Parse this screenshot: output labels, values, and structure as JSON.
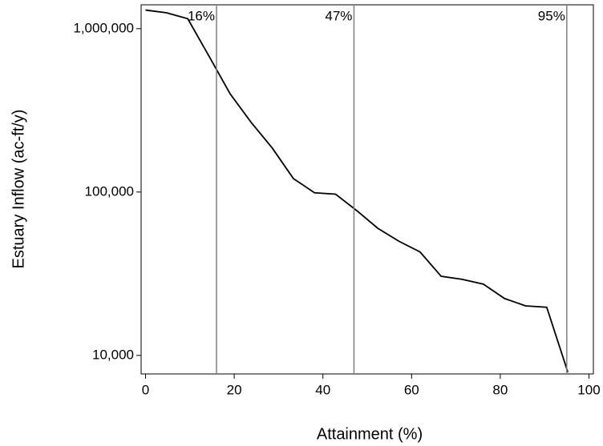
{
  "chart_data": {
    "type": "line",
    "x_label": "Attainment (%)",
    "y_label": "Estuary Inflow (ac-ft/y)",
    "x": [
      0,
      4.76,
      9.52,
      14.29,
      19.05,
      23.81,
      28.57,
      33.33,
      38.1,
      42.86,
      47.62,
      52.38,
      57.14,
      61.9,
      66.67,
      71.43,
      76.19,
      80.95,
      85.71,
      90.48,
      95.24
    ],
    "series": [
      {
        "color": "#000000",
        "values": [
          1300000,
          1250000,
          1150000,
          680000,
          400000,
          267000,
          186000,
          121000,
          99000,
          97000,
          77000,
          60000,
          50000,
          43000,
          30500,
          29200,
          27300,
          22300,
          20100,
          19700,
          7900
        ]
      }
    ],
    "xlim": [
      -1,
      101
    ],
    "xticks": [
      0,
      20,
      40,
      60,
      80,
      100
    ],
    "ylim": [
      7700,
      1400000
    ],
    "log_y": true,
    "yticks": [
      {
        "value": 10000,
        "label": "10,000"
      },
      {
        "value": 100000,
        "label": "100,000"
      },
      {
        "value": 1000000,
        "label": "1,000,000"
      }
    ],
    "vlines": [
      {
        "value": 16,
        "label": "16%"
      },
      {
        "value": 47,
        "label": "47%"
      },
      {
        "value": 95,
        "label": "95%"
      }
    ],
    "vline_color": "#808080"
  }
}
